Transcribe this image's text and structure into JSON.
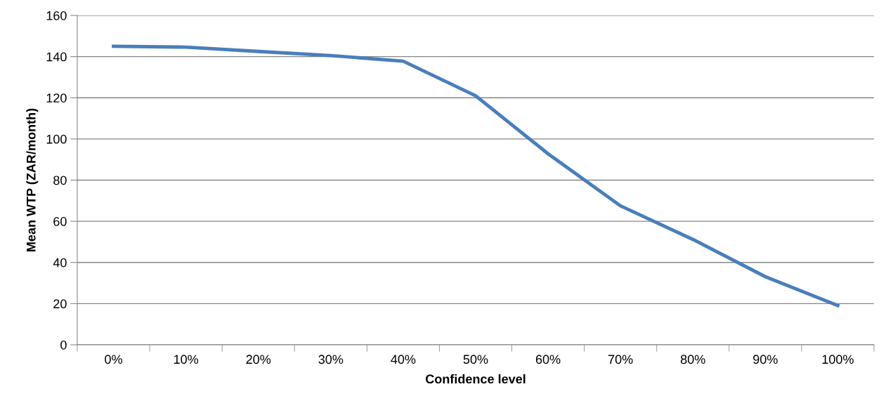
{
  "chart_data": {
    "type": "line",
    "xlabel": "Confidence level",
    "ylabel": "Mean WTP (ZAR/month)",
    "categories": [
      "0%",
      "10%",
      "20%",
      "30%",
      "40%",
      "50%",
      "60%",
      "70%",
      "80%",
      "90%",
      "100%"
    ],
    "series": [
      {
        "color": "#4a7ebb",
        "values": [
          145,
          144.6,
          142.5,
          140.5,
          137.8,
          121,
          92.8,
          67.5,
          51.2,
          33.1,
          19.1
        ]
      }
    ],
    "ylim": [
      0,
      160
    ],
    "yticks": [
      0,
      20,
      40,
      60,
      80,
      100,
      120,
      140,
      160
    ],
    "grid": "y",
    "marker": "none",
    "line_style": "solid"
  }
}
